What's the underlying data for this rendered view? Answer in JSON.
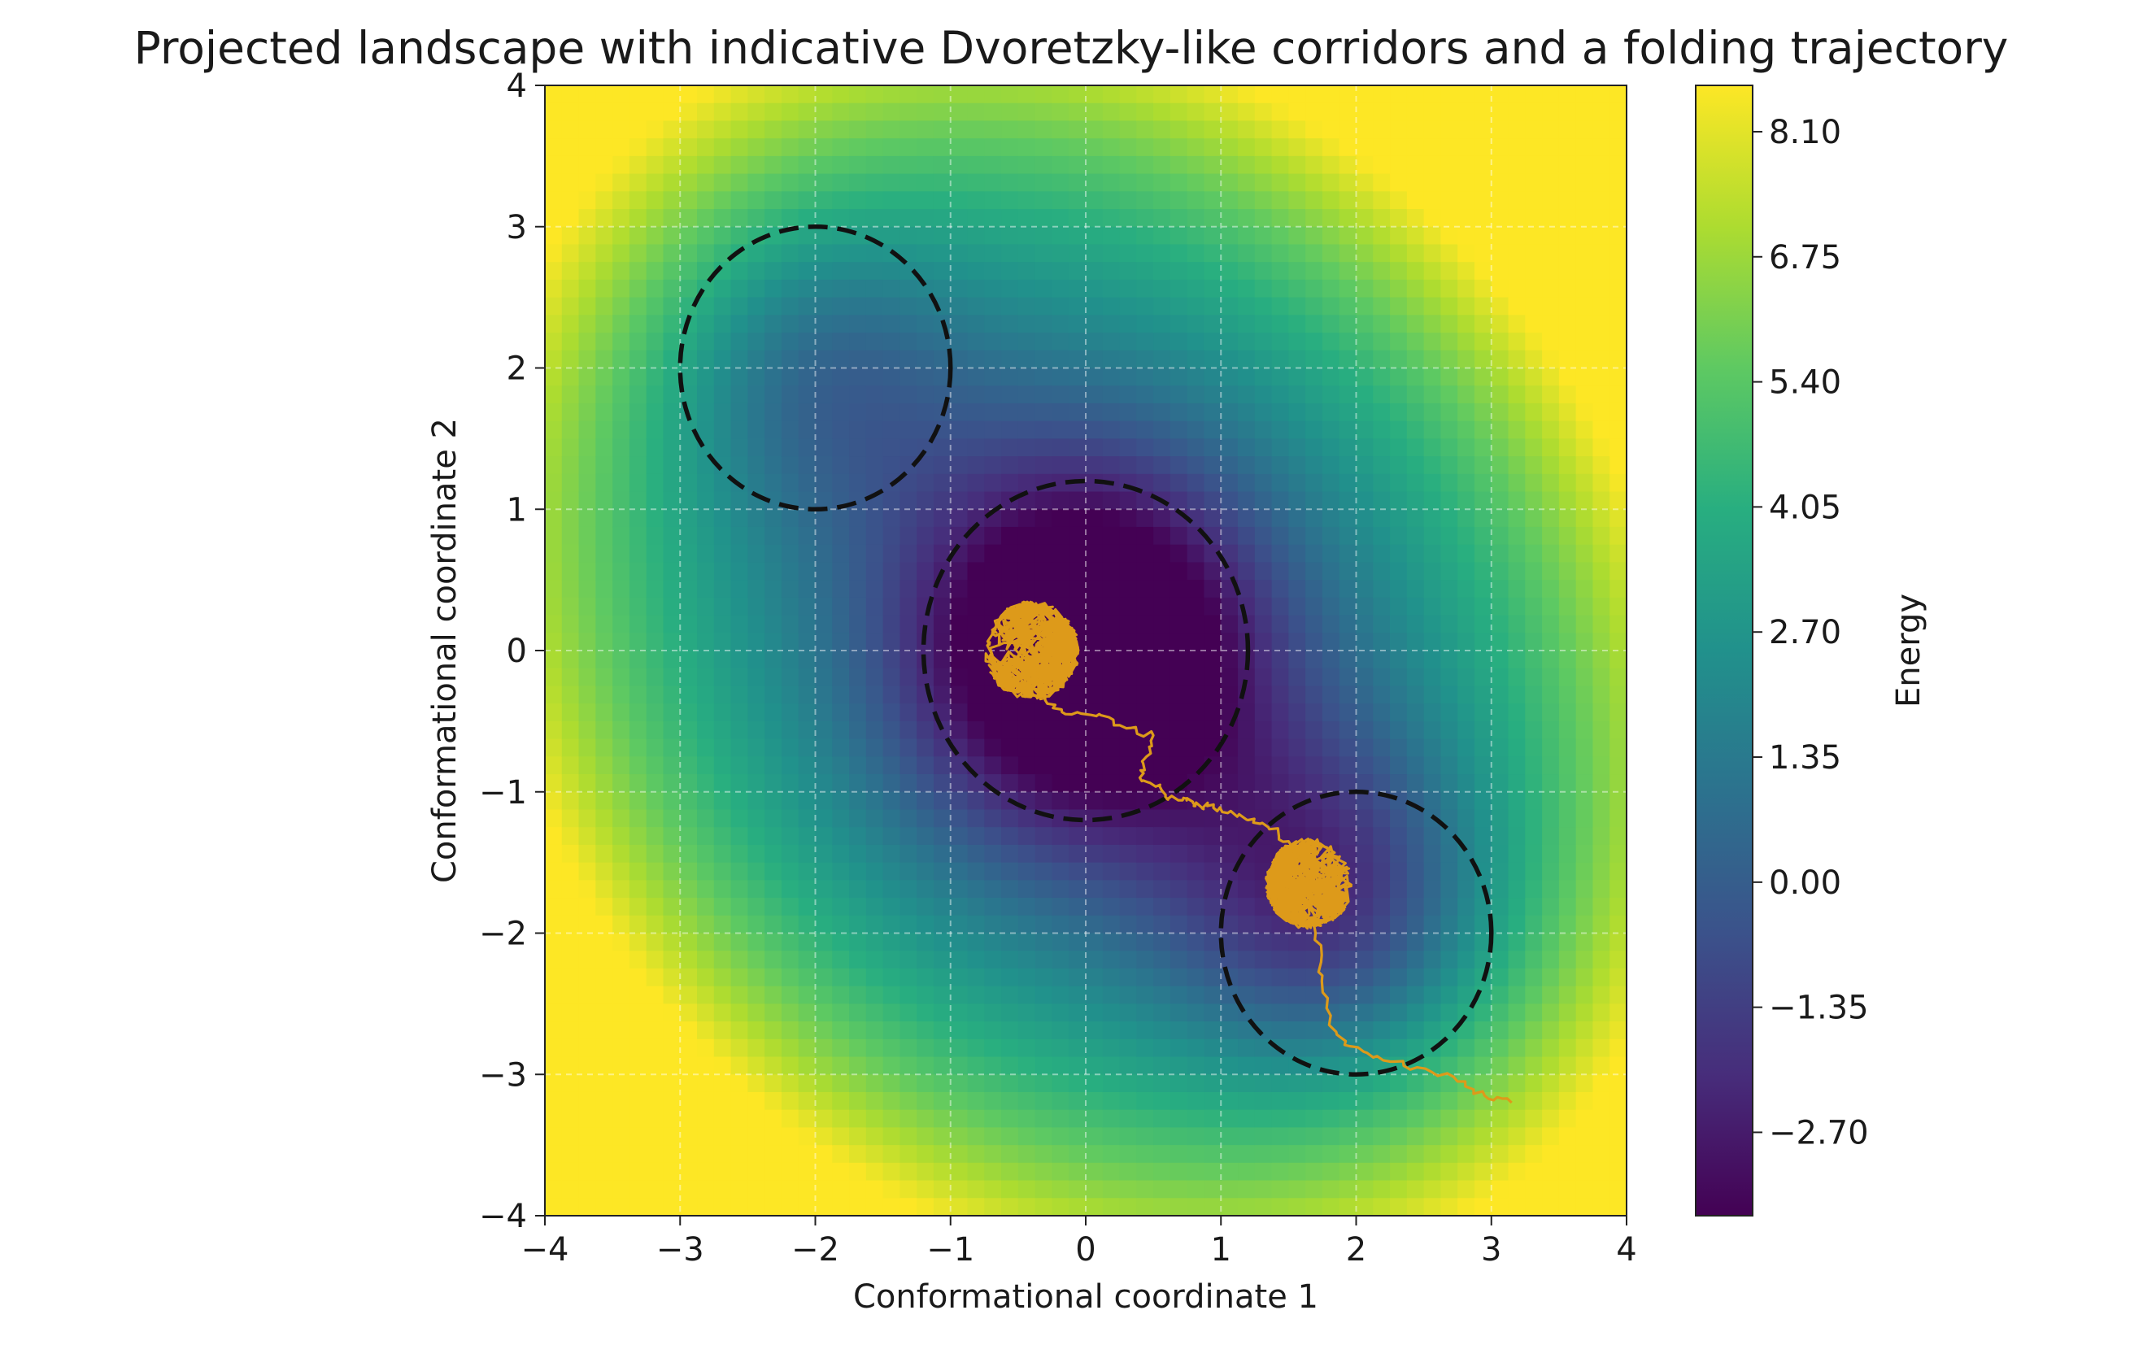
{
  "chart_data": {
    "type": "heatmap",
    "title": "Projected landscape with indicative Dvoretzky-like corridors and a folding trajectory",
    "xlabel": "Conformational coordinate 1",
    "ylabel": "Conformational coordinate 2",
    "xlim": [
      -4,
      4
    ],
    "ylim": [
      -4,
      4
    ],
    "xticks": [
      -4,
      -3,
      -2,
      -1,
      0,
      1,
      2,
      3,
      4
    ],
    "yticks": [
      -4,
      -3,
      -2,
      -1,
      0,
      1,
      2,
      3,
      4
    ],
    "xtick_labels": [
      "−4",
      "−3",
      "−2",
      "−1",
      "0",
      "1",
      "2",
      "3",
      "4"
    ],
    "ytick_labels": [
      "−4",
      "−3",
      "−2",
      "−1",
      "0",
      "1",
      "2",
      "3",
      "4"
    ],
    "grid": true,
    "colormap": "viridis",
    "colorbar": {
      "label": "Energy",
      "range": [
        -3.6,
        8.6
      ],
      "ticks": [
        8.1,
        6.75,
        5.4,
        4.05,
        2.7,
        1.35,
        0.0,
        -1.35,
        -2.7
      ],
      "tick_labels": [
        "8.10",
        "6.75",
        "5.40",
        "4.05",
        "2.70",
        "1.35",
        "0.00",
        "−1.35",
        "−2.70"
      ]
    },
    "circles": [
      {
        "cx": -2.0,
        "cy": 2.0,
        "r": 1.0,
        "style": "dashed",
        "color": "#111111"
      },
      {
        "cx": 0.0,
        "cy": 0.0,
        "r": 1.2,
        "style": "dashed",
        "color": "#111111"
      },
      {
        "cx": 2.0,
        "cy": -2.0,
        "r": 1.0,
        "style": "dashed",
        "color": "#111111"
      }
    ],
    "trajectory": {
      "color": "#dd9a1a",
      "clusters": [
        {
          "cx": -0.4,
          "cy": 0.0,
          "spread": 0.35
        },
        {
          "cx": 1.65,
          "cy": -1.65,
          "spread": 0.32
        }
      ],
      "path": [
        [
          -0.4,
          0.0
        ],
        [
          -0.3,
          -0.35
        ],
        [
          -0.15,
          -0.45
        ],
        [
          0.1,
          -0.45
        ],
        [
          0.3,
          -0.55
        ],
        [
          0.5,
          -0.6
        ],
        [
          0.45,
          -0.75
        ],
        [
          0.4,
          -0.9
        ],
        [
          0.55,
          -0.95
        ],
        [
          0.6,
          -1.05
        ],
        [
          0.75,
          -1.05
        ],
        [
          0.8,
          -1.1
        ],
        [
          0.9,
          -1.1
        ],
        [
          1.05,
          -1.15
        ],
        [
          1.2,
          -1.2
        ],
        [
          1.35,
          -1.25
        ],
        [
          1.5,
          -1.35
        ],
        [
          1.65,
          -1.65
        ],
        [
          1.7,
          -2.0
        ],
        [
          1.75,
          -2.3
        ],
        [
          1.8,
          -2.65
        ],
        [
          1.95,
          -2.8
        ],
        [
          2.2,
          -2.9
        ],
        [
          2.45,
          -2.95
        ],
        [
          2.75,
          -3.05
        ],
        [
          2.95,
          -3.15
        ],
        [
          3.15,
          -3.2
        ]
      ]
    }
  }
}
